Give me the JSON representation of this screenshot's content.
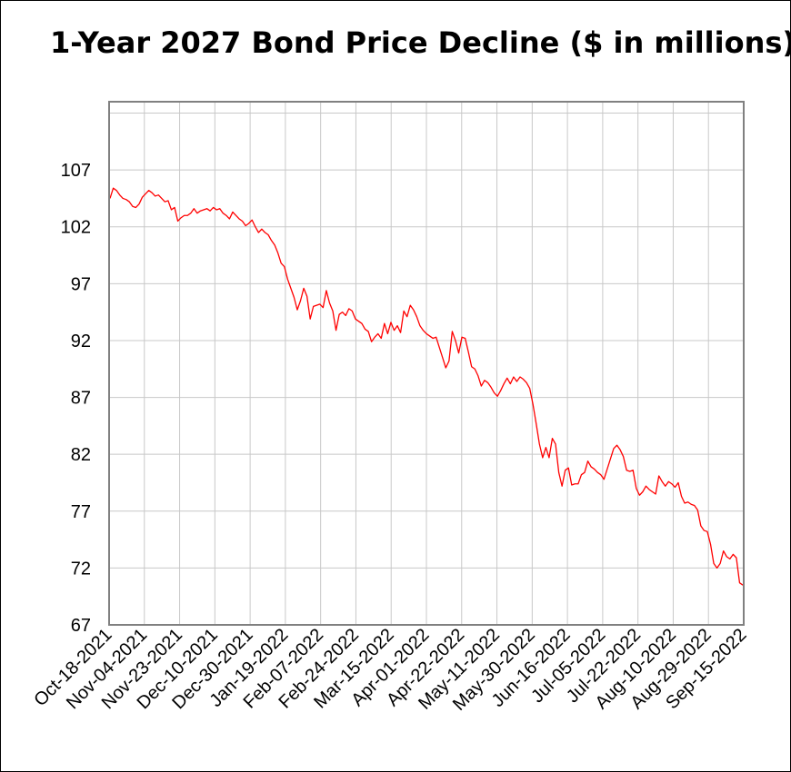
{
  "chart_data": {
    "type": "line",
    "title": "1-Year 2027 Bond Price Decline ($ in millions)",
    "xlabel": "",
    "ylabel": "",
    "ylim": [
      67,
      113
    ],
    "yticks": [
      67,
      72,
      77,
      82,
      87,
      92,
      97,
      102,
      107
    ],
    "xtick_labels": [
      "Oct-18-2021",
      "Nov-04-2021",
      "Nov-23-2021",
      "Dec-10-2021",
      "Dec-30-2021",
      "Jan-19-2022",
      "Feb-07-2022",
      "Feb-24-2022",
      "Mar-15-2022",
      "Apr-01-2022",
      "Apr-22-2022",
      "May-11-2022",
      "May-30-2022",
      "Jun-16-2022",
      "Jul-05-2022",
      "Jul-22-2022",
      "Aug-10-2022",
      "Aug-29-2022",
      "Sep-15-2022"
    ],
    "grid": true,
    "series_color": "#ff0000",
    "series": [
      {
        "values": [
          104.5,
          105.4,
          105.2,
          104.8,
          104.5,
          104.4,
          104.2,
          103.8,
          103.7,
          104.0,
          104.6,
          104.9,
          105.2,
          105.0,
          104.7,
          104.8,
          104.5,
          104.2,
          104.3,
          103.5,
          103.7,
          102.5,
          102.8,
          103.0,
          103.0,
          103.2,
          103.6,
          103.2,
          103.4,
          103.5,
          103.6,
          103.4,
          103.7,
          103.5,
          103.6,
          103.2,
          103.0,
          102.7,
          103.3,
          103.0,
          102.7,
          102.5,
          102.1,
          102.3,
          102.6,
          102.0,
          101.5,
          101.8,
          101.5,
          101.3,
          100.8,
          100.4,
          99.7,
          98.8,
          98.5,
          97.4,
          96.6,
          95.8,
          94.7,
          95.5,
          96.6,
          95.9,
          93.9,
          95.0,
          95.1,
          95.2,
          94.9,
          96.4,
          95.3,
          94.6,
          92.9,
          94.3,
          94.5,
          94.2,
          94.8,
          94.6,
          93.9,
          93.7,
          93.5,
          93.0,
          92.8,
          91.9,
          92.3,
          92.6,
          92.2,
          93.5,
          92.6,
          93.6,
          92.9,
          93.3,
          92.7,
          94.6,
          94.1,
          95.1,
          94.7,
          94.1,
          93.3,
          92.9,
          92.6,
          92.4,
          92.2,
          92.3,
          91.4,
          90.5,
          89.6,
          90.2,
          92.8,
          92.0,
          90.9,
          92.3,
          92.2,
          91.0,
          89.7,
          89.5,
          88.9,
          88.0,
          88.5,
          88.3,
          87.9,
          87.4,
          87.1,
          87.6,
          88.2,
          88.7,
          88.2,
          88.8,
          88.4,
          88.8,
          88.6,
          88.3,
          87.8,
          86.4,
          84.7,
          82.9,
          81.7,
          82.6,
          81.7,
          83.4,
          82.9,
          80.4,
          79.2,
          80.6,
          80.8,
          79.3,
          79.4,
          79.4,
          80.2,
          80.4,
          81.4,
          80.9,
          80.7,
          80.4,
          80.2,
          79.8,
          80.7,
          81.6,
          82.5,
          82.8,
          82.4,
          81.8,
          80.6,
          80.5,
          80.6,
          79.0,
          78.4,
          78.7,
          79.2,
          78.9,
          78.7,
          78.5,
          80.1,
          79.6,
          79.2,
          79.6,
          79.4,
          79.1,
          79.5,
          78.3,
          77.7,
          77.8,
          77.6,
          77.5,
          77.1,
          75.7,
          75.3,
          75.2,
          74.1,
          72.4,
          72.0,
          72.4,
          73.5,
          73.0,
          72.8,
          73.2,
          72.9,
          70.7,
          70.5
        ]
      }
    ]
  }
}
